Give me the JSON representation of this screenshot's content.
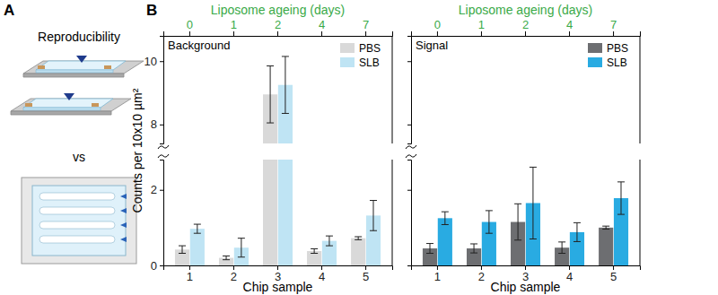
{
  "panel_labels": [
    "A",
    "B"
  ],
  "diagram": {
    "title": "Reproducibility",
    "separator": "vs"
  },
  "chart_data": [
    {
      "type": "bar",
      "title": "Background",
      "xlabel": "Chip sample",
      "ylabel": "Counts per 10x10 µm²",
      "categories": [
        "1",
        "2",
        "3",
        "4",
        "5"
      ],
      "top_axis": {
        "label": "Liposome ageing (days)",
        "categories": [
          "0",
          "1",
          "2",
          "4",
          "7"
        ],
        "color": "#3aaa48"
      },
      "y_segments": [
        {
          "ylim": [
            0,
            2.8
          ],
          "yticks": [
            0,
            2
          ]
        },
        {
          "ylim": [
            7.4,
            10.8
          ],
          "yticks": [
            8,
            10
          ]
        }
      ],
      "legend": "upper right",
      "series": [
        {
          "name": "PBS",
          "color": "#d9d9d9",
          "values": [
            0.42,
            0.2,
            8.95,
            0.38,
            0.72
          ],
          "errors": [
            0.1,
            0.05,
            0.9,
            0.06,
            0.04
          ]
        },
        {
          "name": "SLB",
          "color": "#bfe4f4",
          "values": [
            0.97,
            0.47,
            9.25,
            0.65,
            1.32
          ],
          "errors": [
            0.12,
            0.25,
            0.9,
            0.13,
            0.4
          ]
        }
      ]
    },
    {
      "type": "bar",
      "title": "Signal",
      "xlabel": "Chip sample",
      "categories": [
        "1",
        "2",
        "3",
        "4",
        "5"
      ],
      "top_axis": {
        "label": "Liposome ageing (days)",
        "categories": [
          "0",
          "1",
          "2",
          "4",
          "7"
        ],
        "color": "#3aaa48"
      },
      "y_segments": [
        {
          "ylim": [
            0,
            2.8
          ],
          "yticks": [
            0,
            2
          ]
        },
        {
          "ylim": [
            7.4,
            10.8
          ],
          "yticks": [
            8,
            10
          ]
        }
      ],
      "legend": "upper right",
      "tick_labels": "x",
      "series": [
        {
          "name": "PBS",
          "color": "#6d6e71",
          "values": [
            0.45,
            0.45,
            1.15,
            0.47,
            1.0
          ],
          "errors": [
            0.13,
            0.12,
            0.48,
            0.15,
            0.04
          ]
        },
        {
          "name": "SLB",
          "color": "#29abe2",
          "values": [
            1.25,
            1.15,
            1.65,
            0.88,
            1.78
          ],
          "errors": [
            0.17,
            0.3,
            0.95,
            0.25,
            0.43
          ]
        }
      ]
    }
  ]
}
